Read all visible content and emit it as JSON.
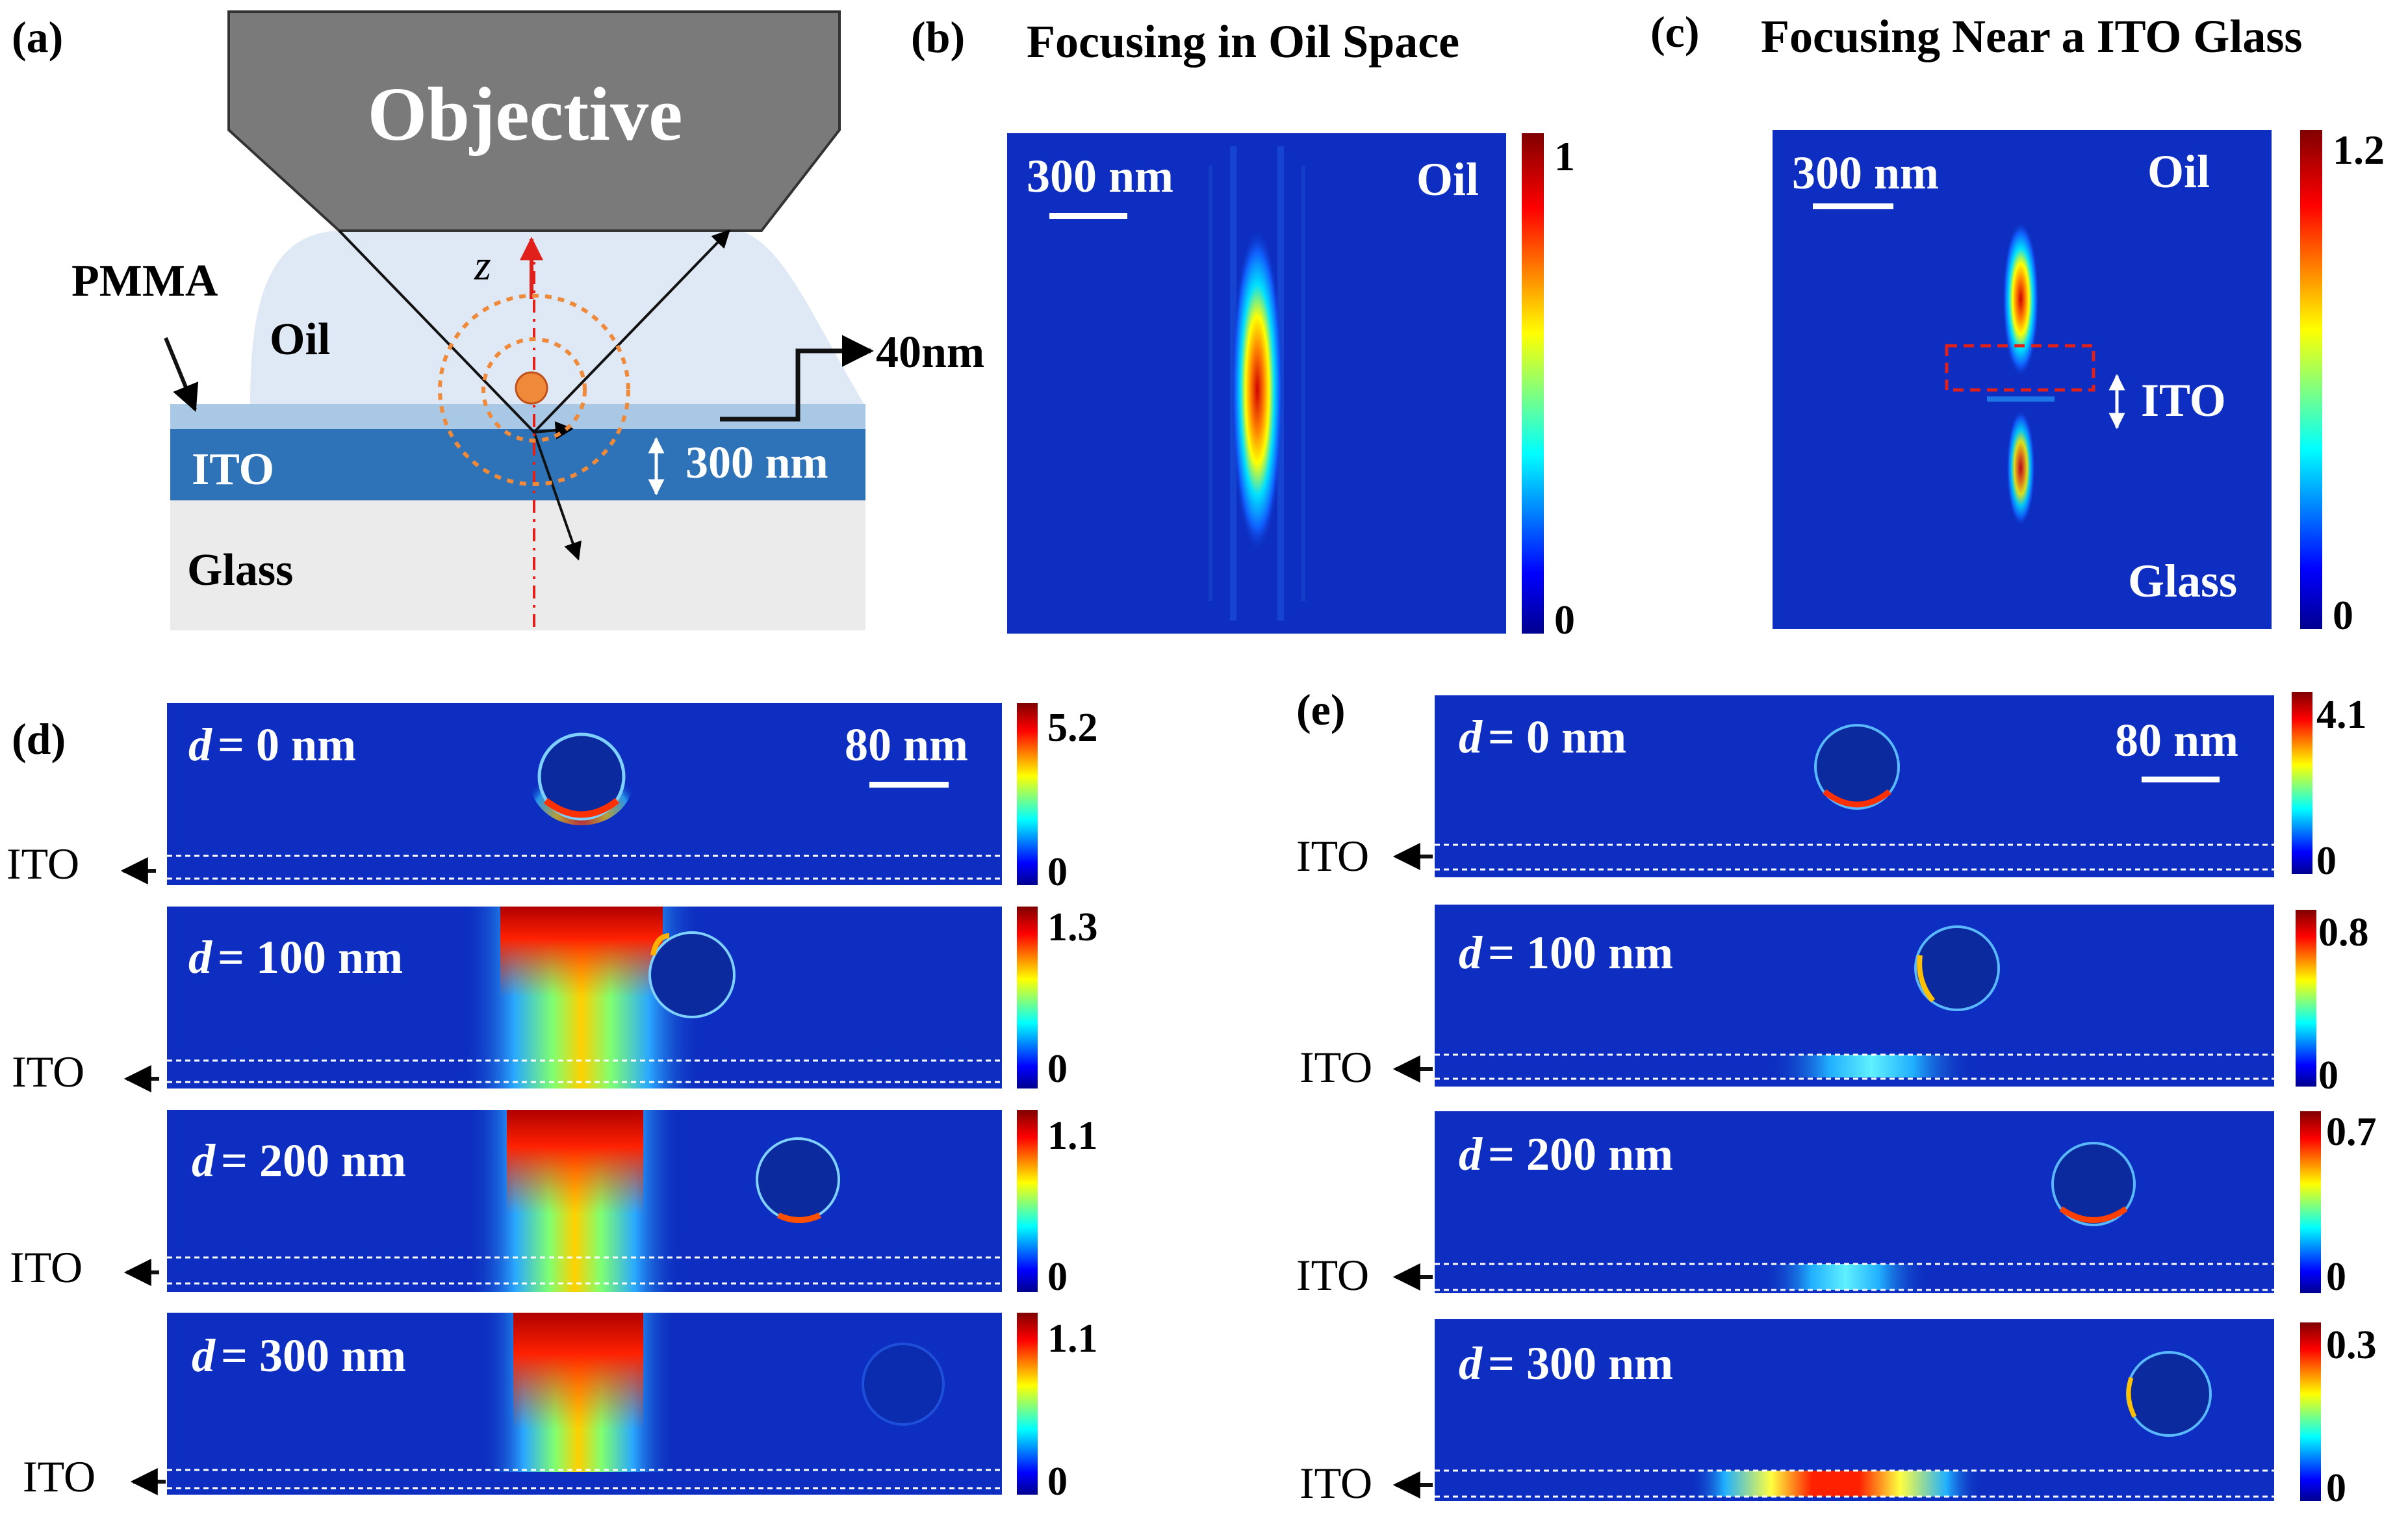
{
  "panel_a": {
    "label": "(a)",
    "objective": "Objective",
    "z_axis": "z",
    "pmma": "PMMA",
    "oil": "Oil",
    "ito": "ITO",
    "glass": "Glass",
    "nm40": "40nm",
    "thickness": "300 nm"
  },
  "panel_b": {
    "label": "(b)",
    "title": "Focusing  in Oil  Space",
    "scale": "300 nm",
    "medium": "Oil",
    "cb_max": "1",
    "cb_min": "0"
  },
  "panel_c": {
    "label": "(c)",
    "title": "Focusing Near a ITO Glass",
    "scale": "300 nm",
    "medium_top": "Oil",
    "medium_bottom": "Glass",
    "ito": "ITO",
    "cb_max": "1.2",
    "cb_min": "0"
  },
  "panel_d": {
    "label": "(d)",
    "scale": "80 nm",
    "ito": "ITO",
    "rows": [
      {
        "d_val": "= 0 nm",
        "cb_max": "5.2",
        "cb_min": "0"
      },
      {
        "d_val": "= 100 nm",
        "cb_max": "1.3",
        "cb_min": "0"
      },
      {
        "d_val": "= 200 nm",
        "cb_max": "1.1",
        "cb_min": "0"
      },
      {
        "d_val": "= 300 nm",
        "cb_max": "1.1",
        "cb_min": "0"
      }
    ]
  },
  "panel_e": {
    "label": "(e)",
    "scale": "80 nm",
    "ito": "ITO",
    "rows": [
      {
        "d_val": "= 0 nm",
        "cb_max": "4.1",
        "cb_min": "0"
      },
      {
        "d_val": "= 100 nm",
        "cb_max": "0.8",
        "cb_min": "0"
      },
      {
        "d_val": "= 200 nm",
        "cb_max": "0.7",
        "cb_min": "0"
      },
      {
        "d_val": "= 300 nm",
        "cb_max": "0.3",
        "cb_min": "0"
      }
    ]
  },
  "symbol_d": "d",
  "colors": {
    "field_bg": "#0d2ec0",
    "objective": "#7a7a7a",
    "oil": "#dfe9f5",
    "ito_layer": "#2e72b8",
    "pmma_layer": "#a9c8e6",
    "glass": "#ebebeb",
    "accent_red": "#e0201b",
    "ring_orange": "#ee8a3a"
  }
}
